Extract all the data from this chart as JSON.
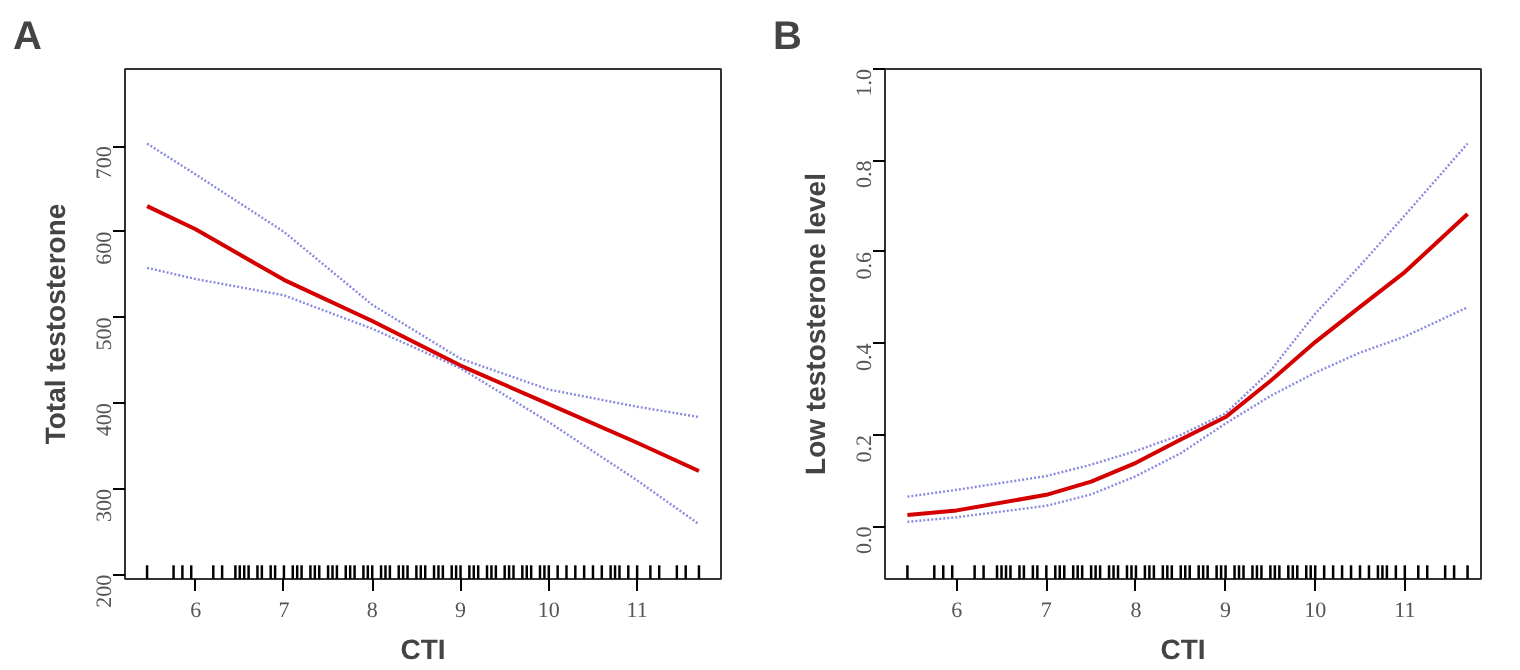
{
  "chart_data": [
    {
      "type": "line",
      "title": "A",
      "xlabel": "CTI",
      "ylabel": "Total testosterone",
      "xlim": [
        5.2,
        11.95
      ],
      "ylim": [
        195,
        790
      ],
      "xticks": [
        6,
        7,
        8,
        9,
        10,
        11
      ],
      "yticks": [
        200,
        300,
        400,
        500,
        600,
        700
      ],
      "grid": false,
      "series": [
        {
          "color": "#d40000",
          "line_style": "solid",
          "x": [
            5.45,
            6,
            7,
            8,
            9,
            10,
            11,
            11.7
          ],
          "values": [
            630,
            603,
            544,
            496,
            444,
            399,
            354,
            321
          ]
        },
        {
          "color": "#8a8ae0",
          "line_style": "dotted",
          "x": [
            5.45,
            6,
            7,
            8,
            9,
            10,
            11,
            11.7
          ],
          "values": [
            703,
            667,
            600,
            515,
            452,
            416,
            396,
            384
          ]
        },
        {
          "color": "#8a8ae0",
          "line_style": "dotted",
          "x": [
            5.45,
            6,
            7,
            8,
            9,
            10,
            11,
            11.7
          ],
          "values": [
            558,
            545,
            526,
            487,
            441,
            378,
            310,
            259
          ]
        },
        {
          "type": "bar",
          "color": "#000000",
          "x": [
            5.45,
            5.75,
            5.85,
            5.95,
            6.2,
            6.3,
            6.45,
            6.5,
            6.55,
            6.6,
            6.7,
            6.75,
            6.85,
            6.9,
            7.0,
            7.1,
            7.15,
            7.2,
            7.3,
            7.35,
            7.4,
            7.5,
            7.55,
            7.6,
            7.7,
            7.75,
            7.8,
            7.9,
            7.95,
            8.0,
            8.1,
            8.15,
            8.2,
            8.3,
            8.35,
            8.4,
            8.5,
            8.55,
            8.6,
            8.7,
            8.75,
            8.8,
            8.9,
            8.95,
            9.0,
            9.1,
            9.15,
            9.2,
            9.3,
            9.35,
            9.4,
            9.5,
            9.55,
            9.6,
            9.7,
            9.75,
            9.8,
            9.9,
            9.95,
            10.0,
            10.1,
            10.2,
            10.3,
            10.4,
            10.5,
            10.6,
            10.7,
            10.75,
            10.8,
            10.9,
            11.0,
            11.15,
            11.25,
            11.45,
            11.55,
            11.7
          ],
          "base": [
            195,
            195,
            195,
            195,
            195,
            195,
            195,
            195,
            195,
            195,
            195,
            195,
            195,
            195,
            195,
            195,
            195,
            195,
            195,
            195,
            195,
            195,
            195,
            195,
            195,
            195,
            195,
            195,
            195,
            195,
            195,
            195,
            195,
            195,
            195,
            195,
            195,
            195,
            195,
            195,
            195,
            195,
            195,
            195,
            195,
            195,
            195,
            195,
            195,
            195,
            195,
            195,
            195,
            195,
            195,
            195,
            195,
            195,
            195,
            195,
            195,
            195,
            195,
            195,
            195,
            195,
            195,
            195,
            195,
            195,
            195,
            195,
            195,
            195,
            195,
            195
          ],
          "values": [
            16,
            16,
            16,
            16,
            16,
            16,
            16,
            16,
            16,
            16,
            16,
            16,
            16,
            16,
            16,
            16,
            16,
            16,
            16,
            16,
            16,
            16,
            16,
            16,
            16,
            16,
            16,
            16,
            16,
            16,
            16,
            16,
            16,
            16,
            16,
            16,
            16,
            16,
            16,
            16,
            16,
            16,
            16,
            16,
            16,
            16,
            16,
            16,
            16,
            16,
            16,
            16,
            16,
            16,
            16,
            16,
            16,
            16,
            16,
            16,
            16,
            16,
            16,
            16,
            16,
            16,
            16,
            16,
            16,
            16,
            16,
            16,
            16,
            16,
            16,
            16
          ]
        }
      ]
    },
    {
      "type": "line",
      "title": "B",
      "xlabel": "CTI",
      "ylabel": "Low testosterone level",
      "xlim": [
        5.2,
        11.85
      ],
      "ylim": [
        -0.115,
        1.0
      ],
      "xticks": [
        6,
        7,
        8,
        9,
        10,
        11
      ],
      "yticks": [
        {
          "value": 0,
          "label": "0.0"
        },
        {
          "value": 0.2,
          "label": "0.2"
        },
        {
          "value": 0.4,
          "label": "0.4"
        },
        {
          "value": 0.6,
          "label": "0.6"
        },
        {
          "value": 0.8,
          "label": "0.8"
        },
        {
          "value": 1,
          "label": "1.0"
        }
      ],
      "grid": false,
      "series": [
        {
          "color": "#d40000",
          "line_style": "solid",
          "x": [
            5.45,
            6,
            7,
            7.5,
            8,
            8.5,
            9,
            9.5,
            10,
            10.5,
            11,
            11.7
          ],
          "values": [
            0.025,
            0.035,
            0.069,
            0.098,
            0.139,
            0.19,
            0.239,
            0.318,
            0.403,
            0.48,
            0.556,
            0.683
          ]
        },
        {
          "color": "#8a8ae0",
          "line_style": "dotted",
          "x": [
            5.45,
            6,
            7,
            7.5,
            8,
            8.5,
            9,
            9.5,
            10,
            10.5,
            11,
            11.7
          ],
          "values": [
            0.065,
            0.08,
            0.11,
            0.135,
            0.165,
            0.2,
            0.247,
            0.34,
            0.465,
            0.57,
            0.68,
            0.837
          ]
        },
        {
          "color": "#8a8ae0",
          "line_style": "dotted",
          "x": [
            5.45,
            6,
            7,
            7.5,
            8,
            8.5,
            9,
            9.5,
            10,
            10.5,
            11,
            11.7
          ],
          "values": [
            0.01,
            0.02,
            0.045,
            0.07,
            0.11,
            0.16,
            0.225,
            0.285,
            0.336,
            0.38,
            0.415,
            0.479
          ]
        },
        {
          "type": "bar",
          "color": "#000000",
          "x": [
            5.45,
            5.75,
            5.85,
            5.95,
            6.2,
            6.3,
            6.45,
            6.5,
            6.55,
            6.6,
            6.7,
            6.75,
            6.85,
            6.9,
            7.0,
            7.1,
            7.15,
            7.2,
            7.3,
            7.35,
            7.4,
            7.5,
            7.55,
            7.6,
            7.7,
            7.75,
            7.8,
            7.9,
            7.95,
            8.0,
            8.1,
            8.15,
            8.2,
            8.3,
            8.35,
            8.4,
            8.5,
            8.55,
            8.6,
            8.7,
            8.75,
            8.8,
            8.9,
            8.95,
            9.0,
            9.1,
            9.15,
            9.2,
            9.3,
            9.35,
            9.4,
            9.5,
            9.55,
            9.6,
            9.7,
            9.75,
            9.8,
            9.9,
            9.95,
            10.0,
            10.1,
            10.2,
            10.3,
            10.4,
            10.5,
            10.6,
            10.7,
            10.75,
            10.8,
            10.9,
            11.0,
            11.15,
            11.25,
            11.45,
            11.55,
            11.7
          ],
          "base": [
            -0.115,
            -0.115,
            -0.115,
            -0.115,
            -0.115,
            -0.115,
            -0.115,
            -0.115,
            -0.115,
            -0.115,
            -0.115,
            -0.115,
            -0.115,
            -0.115,
            -0.115,
            -0.115,
            -0.115,
            -0.115,
            -0.115,
            -0.115,
            -0.115,
            -0.115,
            -0.115,
            -0.115,
            -0.115,
            -0.115,
            -0.115,
            -0.115,
            -0.115,
            -0.115,
            -0.115,
            -0.115,
            -0.115,
            -0.115,
            -0.115,
            -0.115,
            -0.115,
            -0.115,
            -0.115,
            -0.115,
            -0.115,
            -0.115,
            -0.115,
            -0.115,
            -0.115,
            -0.115,
            -0.115,
            -0.115,
            -0.115,
            -0.115,
            -0.115,
            -0.115,
            -0.115,
            -0.115,
            -0.115,
            -0.115,
            -0.115,
            -0.115,
            -0.115,
            -0.115,
            -0.115,
            -0.115,
            -0.115,
            -0.115,
            -0.115,
            -0.115,
            -0.115,
            -0.115,
            -0.115,
            -0.115,
            -0.115,
            -0.115,
            -0.115,
            -0.115,
            -0.115,
            -0.115
          ],
          "values": [
            0.03,
            0.03,
            0.03,
            0.03,
            0.03,
            0.03,
            0.03,
            0.03,
            0.03,
            0.03,
            0.03,
            0.03,
            0.03,
            0.03,
            0.03,
            0.03,
            0.03,
            0.03,
            0.03,
            0.03,
            0.03,
            0.03,
            0.03,
            0.03,
            0.03,
            0.03,
            0.03,
            0.03,
            0.03,
            0.03,
            0.03,
            0.03,
            0.03,
            0.03,
            0.03,
            0.03,
            0.03,
            0.03,
            0.03,
            0.03,
            0.03,
            0.03,
            0.03,
            0.03,
            0.03,
            0.03,
            0.03,
            0.03,
            0.03,
            0.03,
            0.03,
            0.03,
            0.03,
            0.03,
            0.03,
            0.03,
            0.03,
            0.03,
            0.03,
            0.03,
            0.03,
            0.03,
            0.03,
            0.03,
            0.03,
            0.03,
            0.03,
            0.03,
            0.03,
            0.03,
            0.03,
            0.03,
            0.03,
            0.03,
            0.03,
            0.03
          ]
        }
      ]
    }
  ]
}
